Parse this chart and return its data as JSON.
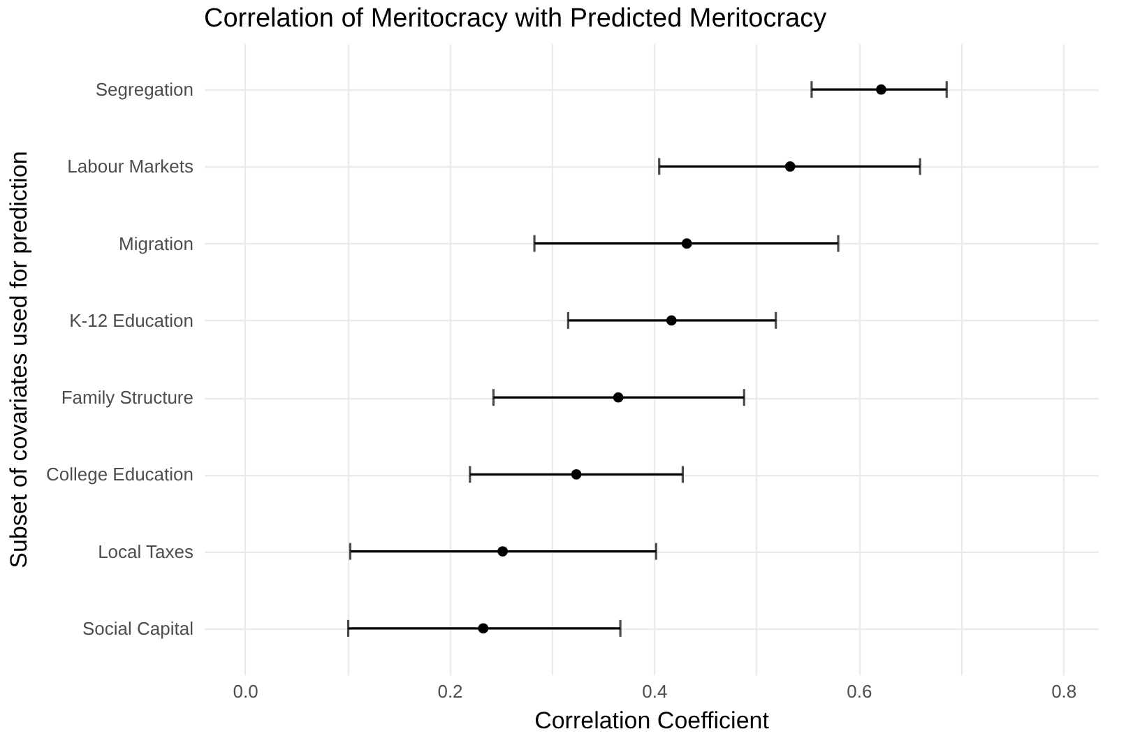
{
  "chart_data": {
    "type": "scatter",
    "orientation": "horizontal",
    "title": "Correlation of Meritocracy with Predicted Meritocracy",
    "xlabel": "Correlation Coefficient",
    "ylabel": "Subset of covariates used for prediction",
    "categories": [
      "Segregation",
      "Labour Markets",
      "Migration",
      "K-12 Education",
      "Family Structure",
      "College Education",
      "Local Taxes",
      "Social Capital"
    ],
    "values": [
      0.622,
      0.533,
      0.432,
      0.417,
      0.365,
      0.324,
      0.252,
      0.233
    ],
    "errors": [
      [
        0.554,
        0.686
      ],
      [
        0.405,
        0.66
      ],
      [
        0.283,
        0.58
      ],
      [
        0.316,
        0.519
      ],
      [
        0.243,
        0.488
      ],
      [
        0.22,
        0.428
      ],
      [
        0.103,
        0.402
      ],
      [
        0.101,
        0.367
      ]
    ],
    "color": "#000000",
    "marker": "circle",
    "grid": true,
    "xlim": [
      -0.04,
      0.834
    ],
    "xticks": [
      {
        "value": 0,
        "label": "0.0"
      },
      {
        "value": 0.1,
        "label": null
      },
      0.2,
      {
        "value": 0.3,
        "label": null
      },
      0.4,
      {
        "value": 0.5,
        "label": null
      },
      0.6,
      {
        "value": 0.7,
        "label": null
      },
      0.8
    ]
  }
}
